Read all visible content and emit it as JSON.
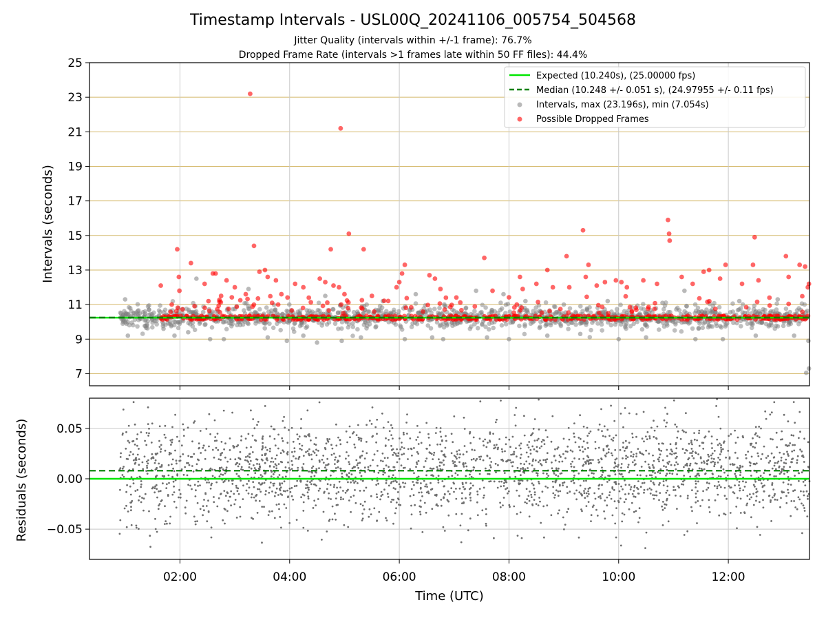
{
  "chart_data": {
    "type": "scatter",
    "title": "Timestamp Intervals - USL00Q_20241106_005754_504568",
    "subtitles": [
      "Jitter Quality (intervals within +/-1 frame): 76.7%",
      "Dropped Frame Rate (intervals >1 frames late within 50 FF files): 44.4%"
    ],
    "xlabel": "Time (UTC)",
    "x_tick_labels": [
      "02:00",
      "04:00",
      "06:00",
      "08:00",
      "10:00",
      "12:00"
    ],
    "x_ticks_hours": [
      2,
      4,
      6,
      8,
      10,
      12
    ],
    "xlim_hours": [
      0.35,
      13.48
    ],
    "data_time_range_hours": [
      0.9,
      13.48
    ],
    "top_panel": {
      "ylabel": "Intervals (seconds)",
      "ylim": [
        6.3,
        25
      ],
      "y_ticks": [
        7,
        9,
        11,
        13,
        15,
        17,
        19,
        21,
        23,
        25
      ],
      "gridlines_color": "#d4b86a",
      "expected": 10.24,
      "median": 10.248,
      "legend_position": "top-right",
      "legend": {
        "expected": "Expected (10.240s), (25.00000 fps)",
        "median": "Median (10.248 +/- 0.051 s), (24.97955 +/- 0.11 fps)",
        "intervals": "Intervals, max (23.196s), min (7.054s)",
        "dropped": "Possible Dropped Frames"
      },
      "series": {
        "intervals_color": "#808080",
        "dropped_color": "#ff0000",
        "expected_color": "#00e600",
        "median_color": "#008000"
      },
      "dropped_outliers": [
        {
          "x": 1.65,
          "y": 12.1
        },
        {
          "x": 1.85,
          "y": 11.0
        },
        {
          "x": 1.95,
          "y": 14.2
        },
        {
          "x": 1.98,
          "y": 12.6
        },
        {
          "x": 1.99,
          "y": 11.8
        },
        {
          "x": 2.2,
          "y": 13.4
        },
        {
          "x": 2.45,
          "y": 12.2
        },
        {
          "x": 2.52,
          "y": 11.2
        },
        {
          "x": 2.6,
          "y": 12.8
        },
        {
          "x": 2.65,
          "y": 12.8
        },
        {
          "x": 2.75,
          "y": 11.5
        },
        {
          "x": 2.85,
          "y": 12.4
        },
        {
          "x": 3.0,
          "y": 12.0
        },
        {
          "x": 3.2,
          "y": 11.6
        },
        {
          "x": 3.28,
          "y": 23.2
        },
        {
          "x": 3.35,
          "y": 14.4
        },
        {
          "x": 3.45,
          "y": 12.9
        },
        {
          "x": 3.55,
          "y": 13.0
        },
        {
          "x": 3.6,
          "y": 12.6
        },
        {
          "x": 3.68,
          "y": 11.1
        },
        {
          "x": 3.75,
          "y": 12.4
        },
        {
          "x": 3.85,
          "y": 11.6
        },
        {
          "x": 4.1,
          "y": 12.2
        },
        {
          "x": 4.25,
          "y": 12.0
        },
        {
          "x": 4.35,
          "y": 11.4
        },
        {
          "x": 4.55,
          "y": 12.5
        },
        {
          "x": 4.65,
          "y": 12.3
        },
        {
          "x": 4.75,
          "y": 14.2
        },
        {
          "x": 4.8,
          "y": 12.1
        },
        {
          "x": 4.9,
          "y": 12.0
        },
        {
          "x": 4.93,
          "y": 21.2
        },
        {
          "x": 5.0,
          "y": 11.6
        },
        {
          "x": 5.08,
          "y": 15.1
        },
        {
          "x": 5.35,
          "y": 14.2
        },
        {
          "x": 5.5,
          "y": 11.5
        },
        {
          "x": 5.95,
          "y": 12.0
        },
        {
          "x": 6.0,
          "y": 12.3
        },
        {
          "x": 6.05,
          "y": 12.8
        },
        {
          "x": 6.1,
          "y": 13.3
        },
        {
          "x": 6.55,
          "y": 12.7
        },
        {
          "x": 6.65,
          "y": 12.5
        },
        {
          "x": 6.75,
          "y": 11.9
        },
        {
          "x": 6.85,
          "y": 11.4
        },
        {
          "x": 7.55,
          "y": 13.7
        },
        {
          "x": 7.7,
          "y": 11.8
        },
        {
          "x": 8.2,
          "y": 12.6
        },
        {
          "x": 8.25,
          "y": 11.9
        },
        {
          "x": 8.5,
          "y": 12.2
        },
        {
          "x": 8.7,
          "y": 13.0
        },
        {
          "x": 8.8,
          "y": 12.0
        },
        {
          "x": 9.05,
          "y": 13.8
        },
        {
          "x": 9.1,
          "y": 12.0
        },
        {
          "x": 9.35,
          "y": 15.3
        },
        {
          "x": 9.4,
          "y": 12.6
        },
        {
          "x": 9.45,
          "y": 13.3
        },
        {
          "x": 9.6,
          "y": 12.1
        },
        {
          "x": 9.75,
          "y": 12.3
        },
        {
          "x": 9.95,
          "y": 12.4
        },
        {
          "x": 10.05,
          "y": 12.3
        },
        {
          "x": 10.15,
          "y": 12.0
        },
        {
          "x": 10.45,
          "y": 12.4
        },
        {
          "x": 10.7,
          "y": 12.2
        },
        {
          "x": 10.9,
          "y": 15.9
        },
        {
          "x": 10.92,
          "y": 15.1
        },
        {
          "x": 10.93,
          "y": 14.7
        },
        {
          "x": 11.15,
          "y": 12.6
        },
        {
          "x": 11.35,
          "y": 12.2
        },
        {
          "x": 11.55,
          "y": 12.9
        },
        {
          "x": 11.65,
          "y": 13.0
        },
        {
          "x": 11.85,
          "y": 12.5
        },
        {
          "x": 11.95,
          "y": 13.3
        },
        {
          "x": 12.25,
          "y": 12.2
        },
        {
          "x": 12.45,
          "y": 13.3
        },
        {
          "x": 12.48,
          "y": 14.9
        },
        {
          "x": 12.55,
          "y": 12.4
        },
        {
          "x": 12.75,
          "y": 11.4
        },
        {
          "x": 13.05,
          "y": 13.8
        },
        {
          "x": 13.1,
          "y": 12.6
        },
        {
          "x": 13.3,
          "y": 13.3
        },
        {
          "x": 13.4,
          "y": 13.2
        },
        {
          "x": 13.45,
          "y": 12.0
        },
        {
          "x": 13.47,
          "y": 12.2
        }
      ],
      "interval_outliers": [
        {
          "x": 1.0,
          "y": 11.3
        },
        {
          "x": 1.05,
          "y": 9.2
        },
        {
          "x": 1.7,
          "y": 9.6
        },
        {
          "x": 1.9,
          "y": 9.2
        },
        {
          "x": 2.15,
          "y": 9.4
        },
        {
          "x": 2.3,
          "y": 12.5
        },
        {
          "x": 2.55,
          "y": 9.0
        },
        {
          "x": 2.8,
          "y": 9.0
        },
        {
          "x": 3.25,
          "y": 11.9
        },
        {
          "x": 3.6,
          "y": 9.1
        },
        {
          "x": 3.95,
          "y": 8.9
        },
        {
          "x": 4.25,
          "y": 9.2
        },
        {
          "x": 4.5,
          "y": 8.8
        },
        {
          "x": 4.65,
          "y": 11.5
        },
        {
          "x": 4.95,
          "y": 8.9
        },
        {
          "x": 5.3,
          "y": 9.1
        },
        {
          "x": 5.7,
          "y": 11.2
        },
        {
          "x": 6.1,
          "y": 9.0
        },
        {
          "x": 6.3,
          "y": 11.6
        },
        {
          "x": 6.6,
          "y": 9.1
        },
        {
          "x": 6.8,
          "y": 9.0
        },
        {
          "x": 7.4,
          "y": 11.8
        },
        {
          "x": 7.6,
          "y": 9.1
        },
        {
          "x": 7.9,
          "y": 11.6
        },
        {
          "x": 8.0,
          "y": 9.0
        },
        {
          "x": 8.3,
          "y": 11.2
        },
        {
          "x": 8.7,
          "y": 9.2
        },
        {
          "x": 9.0,
          "y": 11.0
        },
        {
          "x": 9.3,
          "y": 9.3
        },
        {
          "x": 9.8,
          "y": 11.2
        },
        {
          "x": 10.0,
          "y": 9.0
        },
        {
          "x": 10.5,
          "y": 9.1
        },
        {
          "x": 10.8,
          "y": 11.1
        },
        {
          "x": 11.2,
          "y": 11.8
        },
        {
          "x": 11.4,
          "y": 9.0
        },
        {
          "x": 11.9,
          "y": 9.0
        },
        {
          "x": 12.2,
          "y": 11.2
        },
        {
          "x": 12.5,
          "y": 9.2
        },
        {
          "x": 12.9,
          "y": 11.3
        },
        {
          "x": 13.2,
          "y": 9.2
        },
        {
          "x": 13.42,
          "y": 7.05
        },
        {
          "x": 13.47,
          "y": 7.3
        },
        {
          "x": 13.46,
          "y": 8.9
        }
      ]
    },
    "bottom_panel": {
      "ylabel": "Residuals (seconds)",
      "ylim": [
        -0.08,
        0.08
      ],
      "y_ticks": [
        0.05,
        0.0,
        -0.05
      ],
      "y_tick_labels": [
        "0.05",
        "0.00",
        "−0.05"
      ],
      "expected_line": 0.0,
      "median_line": 0.008
    }
  }
}
